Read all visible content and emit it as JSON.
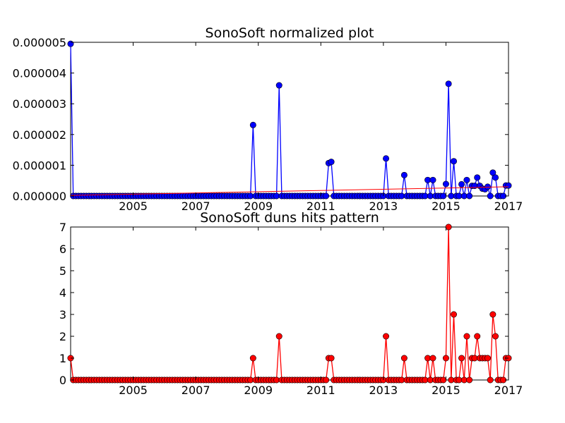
{
  "colors": {
    "top_line": "#0000ff",
    "top_marker": "#0000ff",
    "trend_line": "#ff0000",
    "bottom_line": "#ff0000",
    "bottom_marker": "#ff0000",
    "frame": "#000000"
  },
  "chart_data": [
    {
      "type": "line",
      "title": "SonoSoft normalized plot",
      "xlabel": "",
      "ylabel": "",
      "xlim": [
        2003.0,
        2017.0
      ],
      "ylim": [
        0.0,
        5e-06
      ],
      "xticks": [
        2005,
        2007,
        2009,
        2011,
        2013,
        2015,
        2017
      ],
      "xtick_labels": [
        "2005",
        "2007",
        "2009",
        "2011",
        "2013",
        "2015",
        "2017"
      ],
      "yticks": [
        0.0,
        1e-06,
        2e-06,
        3e-06,
        4e-06,
        5e-06
      ],
      "ytick_labels": [
        "0.000000",
        "0.000001",
        "0.000002",
        "0.000003",
        "0.000004",
        "0.000005"
      ],
      "grid": false,
      "legend": "none",
      "series": [
        {
          "role": "normalized",
          "marker": "circle",
          "x": [
            2003.0,
            2008.83,
            2009.67,
            2011.25,
            2011.33,
            2013.08,
            2013.67,
            2014.42,
            2014.58,
            2015.0,
            2015.08,
            2015.25,
            2015.5,
            2015.67,
            2015.83,
            2015.92,
            2016.0,
            2016.08,
            2016.17,
            2016.25,
            2016.33,
            2016.5,
            2016.58,
            2016.92,
            2017.0
          ],
          "y": [
            4.95e-06,
            2.31e-06,
            3.6e-06,
            1.07e-06,
            1.11e-06,
            1.22e-06,
            6.8e-07,
            5.2e-07,
            5.2e-07,
            3.9e-07,
            3.65e-06,
            1.13e-06,
            3.8e-07,
            5.2e-07,
            3.3e-07,
            3.3e-07,
            6e-07,
            3.3e-07,
            2.4e-07,
            2.2e-07,
            3e-07,
            7.6e-07,
            6e-07,
            3.4e-07,
            3.4e-07
          ]
        },
        {
          "role": "trend",
          "marker": "none",
          "x": [
            2003.0,
            2017.0
          ],
          "y": [
            2e-08,
            3e-07
          ]
        }
      ]
    },
    {
      "type": "line",
      "title": "SonoSoft duns hits pattern",
      "xlabel": "",
      "ylabel": "",
      "xlim": [
        2003.0,
        2017.0
      ],
      "ylim": [
        0,
        7
      ],
      "xticks": [
        2005,
        2007,
        2009,
        2011,
        2013,
        2015,
        2017
      ],
      "xtick_labels": [
        "2005",
        "2007",
        "2009",
        "2011",
        "2013",
        "2015",
        "2017"
      ],
      "yticks": [
        0,
        1,
        2,
        3,
        4,
        5,
        6,
        7
      ],
      "ytick_labels": [
        "0",
        "1",
        "2",
        "3",
        "4",
        "5",
        "6",
        "7"
      ],
      "grid": false,
      "legend": "none",
      "series": [
        {
          "role": "hits",
          "marker": "circle",
          "x": [
            2003.0,
            2008.83,
            2009.67,
            2011.25,
            2011.33,
            2013.08,
            2013.67,
            2014.42,
            2014.58,
            2015.0,
            2015.08,
            2015.25,
            2015.5,
            2015.67,
            2015.83,
            2015.92,
            2016.0,
            2016.08,
            2016.17,
            2016.25,
            2016.33,
            2016.5,
            2016.58,
            2016.92,
            2017.0
          ],
          "y": [
            1,
            1,
            2,
            1,
            1,
            2,
            1,
            1,
            1,
            1,
            7,
            3,
            1,
            2,
            1,
            1,
            2,
            1,
            1,
            1,
            1,
            3,
            2,
            1,
            1
          ]
        }
      ]
    }
  ]
}
